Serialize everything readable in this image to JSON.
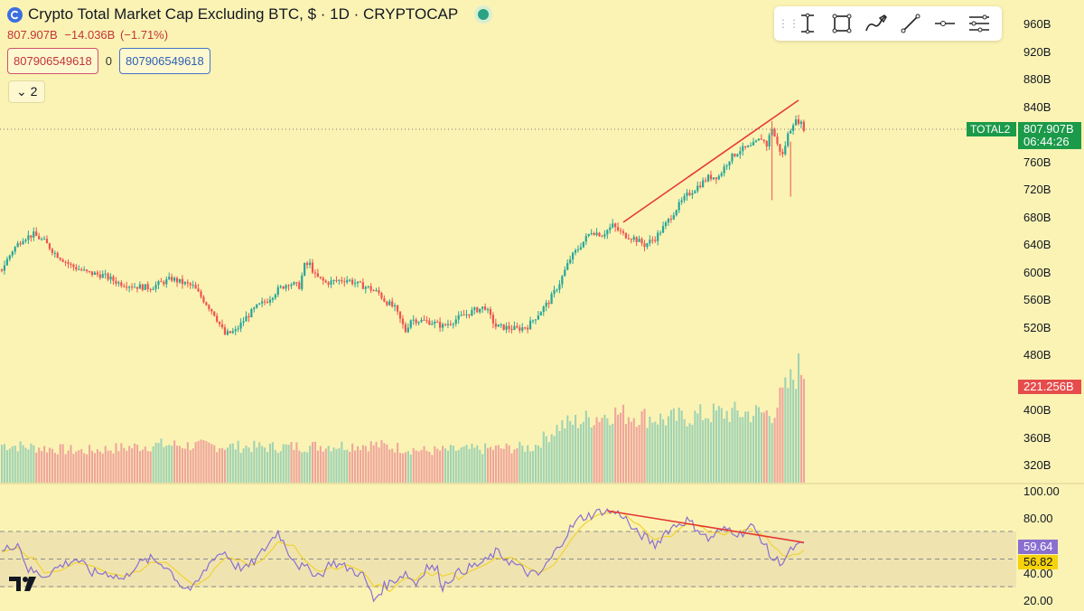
{
  "header": {
    "title": "Crypto Total Market Cap Excluding BTC, $ · 1D · CRYPTOCAP",
    "last": "807.907B",
    "change": "−14.036B",
    "change_pct": "(−1.71%)",
    "box_left": "807906549618",
    "box_mid": "0",
    "box_right": "807906549618",
    "collapse_label": "2"
  },
  "toolbar": {
    "tools": [
      "text-cursor-icon",
      "rectangle-icon",
      "brush-icon",
      "trendline-icon",
      "horizontal-ray-icon",
      "menu-icon"
    ]
  },
  "colors": {
    "background": "#fbf3b4",
    "up": "#26a69a",
    "down": "#ef5350",
    "trendline": "#e53935",
    "rsi": "#8a6fd0",
    "rsi_ma": "#f2d230",
    "label_green": "#1b9a49",
    "label_red": "#e64c4c",
    "label_purple": "#8a6fd0",
    "label_yellow": "#f6d20c"
  },
  "chart_data": {
    "type": "candlestick",
    "title": "Crypto Total Market Cap Excluding BTC, $ · 1D · CRYPTOCAP",
    "symbol": "TOTAL2",
    "price_ticks": [
      "960B",
      "920B",
      "880B",
      "840B",
      "760B",
      "720B",
      "680B",
      "640B",
      "600B",
      "560B",
      "520B",
      "480B",
      "400B",
      "360B",
      "320B"
    ],
    "last_price": "807.907B",
    "last_price_value": 807.907,
    "countdown": "06:44:26",
    "volume_label": "221.256B",
    "volume_value": 221.256,
    "anchors": [
      [
        0,
        605
      ],
      [
        4,
        632
      ],
      [
        8,
        650
      ],
      [
        12,
        655
      ],
      [
        16,
        645
      ],
      [
        20,
        628
      ],
      [
        26,
        610
      ],
      [
        32,
        600
      ],
      [
        38,
        596
      ],
      [
        44,
        585
      ],
      [
        50,
        580
      ],
      [
        56,
        578
      ],
      [
        60,
        585
      ],
      [
        64,
        591
      ],
      [
        68,
        585
      ],
      [
        72,
        580
      ],
      [
        76,
        560
      ],
      [
        80,
        540
      ],
      [
        84,
        510
      ],
      [
        88,
        515
      ],
      [
        92,
        535
      ],
      [
        96,
        550
      ],
      [
        100,
        560
      ],
      [
        104,
        575
      ],
      [
        108,
        585
      ],
      [
        112,
        580
      ],
      [
        114,
        610
      ],
      [
        116,
        612
      ],
      [
        118,
        595
      ],
      [
        122,
        585
      ],
      [
        126,
        588
      ],
      [
        130,
        590
      ],
      [
        134,
        583
      ],
      [
        138,
        578
      ],
      [
        142,
        570
      ],
      [
        144,
        560
      ],
      [
        148,
        548
      ],
      [
        152,
        515
      ],
      [
        154,
        532
      ],
      [
        158,
        530
      ],
      [
        162,
        528
      ],
      [
        166,
        522
      ],
      [
        170,
        530
      ],
      [
        174,
        538
      ],
      [
        178,
        545
      ],
      [
        182,
        550
      ],
      [
        184,
        535
      ],
      [
        186,
        522
      ],
      [
        190,
        520
      ],
      [
        194,
        518
      ],
      [
        198,
        522
      ],
      [
        202,
        540
      ],
      [
        206,
        558
      ],
      [
        210,
        585
      ],
      [
        214,
        620
      ],
      [
        218,
        640
      ],
      [
        222,
        660
      ],
      [
        226,
        655
      ],
      [
        230,
        668
      ],
      [
        234,
        655
      ],
      [
        238,
        650
      ],
      [
        242,
        640
      ],
      [
        246,
        650
      ],
      [
        250,
        670
      ],
      [
        254,
        693
      ],
      [
        258,
        712
      ],
      [
        262,
        725
      ],
      [
        266,
        738
      ],
      [
        270,
        740
      ],
      [
        274,
        765
      ],
      [
        278,
        778
      ],
      [
        282,
        782
      ],
      [
        286,
        795
      ],
      [
        288,
        785
      ],
      [
        290,
        810
      ],
      [
        292,
        785
      ],
      [
        294,
        770
      ],
      [
        296,
        800
      ],
      [
        298,
        818
      ],
      [
        300,
        820
      ],
      [
        302,
        810
      ]
    ],
    "volume_anchors": [
      [
        0,
        0.3
      ],
      [
        30,
        0.25
      ],
      [
        60,
        0.3
      ],
      [
        100,
        0.28
      ],
      [
        140,
        0.3
      ],
      [
        160,
        0.25
      ],
      [
        200,
        0.28
      ],
      [
        210,
        0.45
      ],
      [
        230,
        0.55
      ],
      [
        250,
        0.5
      ],
      [
        270,
        0.55
      ],
      [
        290,
        0.55
      ],
      [
        300,
        0.9
      ]
    ],
    "price_trendline": [
      [
        234,
        673
      ],
      [
        300,
        850
      ]
    ],
    "rsi": {
      "ticks": [
        "100.00",
        "80.00",
        "40.00",
        "20.00"
      ],
      "value": "59.64",
      "ma_value": "56.82",
      "upper": 70,
      "lower": 30,
      "trendline": [
        [
          228,
          85
        ],
        [
          302,
          62
        ]
      ],
      "anchors": [
        [
          0,
          55
        ],
        [
          6,
          62
        ],
        [
          10,
          42
        ],
        [
          16,
          38
        ],
        [
          22,
          45
        ],
        [
          28,
          50
        ],
        [
          34,
          40
        ],
        [
          40,
          40
        ],
        [
          46,
          35
        ],
        [
          50,
          45
        ],
        [
          56,
          50
        ],
        [
          62,
          45
        ],
        [
          68,
          30
        ],
        [
          72,
          28
        ],
        [
          76,
          40
        ],
        [
          80,
          52
        ],
        [
          84,
          55
        ],
        [
          88,
          45
        ],
        [
          92,
          43
        ],
        [
          96,
          50
        ],
        [
          100,
          60
        ],
        [
          104,
          70
        ],
        [
          108,
          55
        ],
        [
          112,
          45
        ],
        [
          116,
          42
        ],
        [
          120,
          38
        ],
        [
          124,
          48
        ],
        [
          128,
          45
        ],
        [
          132,
          42
        ],
        [
          136,
          38
        ],
        [
          138,
          30
        ],
        [
          140,
          20
        ],
        [
          144,
          30
        ],
        [
          148,
          35
        ],
        [
          152,
          40
        ],
        [
          156,
          32
        ],
        [
          160,
          45
        ],
        [
          164,
          42
        ],
        [
          166,
          30
        ],
        [
          170,
          38
        ],
        [
          174,
          42
        ],
        [
          178,
          45
        ],
        [
          182,
          48
        ],
        [
          186,
          55
        ],
        [
          190,
          50
        ],
        [
          194,
          45
        ],
        [
          198,
          40
        ],
        [
          202,
          38
        ],
        [
          206,
          48
        ],
        [
          210,
          60
        ],
        [
          214,
          72
        ],
        [
          218,
          80
        ],
        [
          222,
          82
        ],
        [
          226,
          85
        ],
        [
          230,
          84
        ],
        [
          234,
          82
        ],
        [
          238,
          70
        ],
        [
          242,
          66
        ],
        [
          246,
          60
        ],
        [
          250,
          70
        ],
        [
          254,
          75
        ],
        [
          258,
          78
        ],
        [
          262,
          72
        ],
        [
          266,
          64
        ],
        [
          270,
          70
        ],
        [
          274,
          72
        ],
        [
          278,
          68
        ],
        [
          282,
          74
        ],
        [
          286,
          65
        ],
        [
          290,
          50
        ],
        [
          294,
          48
        ],
        [
          298,
          58
        ],
        [
          302,
          60
        ]
      ]
    }
  }
}
